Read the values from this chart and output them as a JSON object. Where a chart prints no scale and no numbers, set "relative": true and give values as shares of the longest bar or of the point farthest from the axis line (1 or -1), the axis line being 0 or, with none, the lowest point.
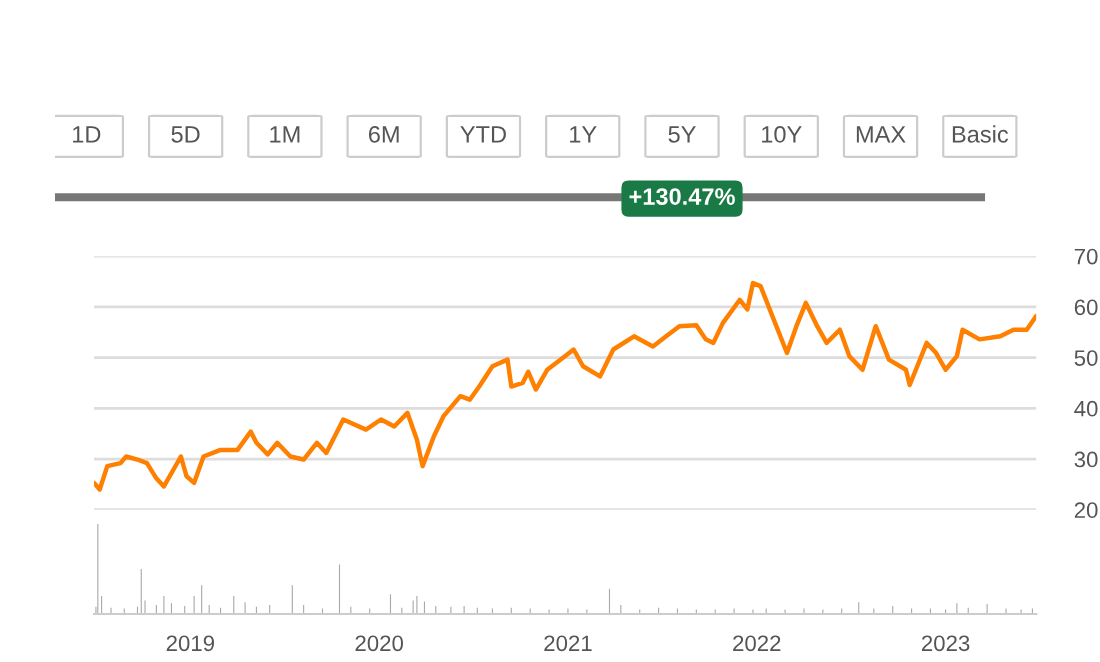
{
  "chart_data": [
    {
      "type": "other",
      "annotations": [
        "1D",
        "5D",
        "1M",
        "6M",
        "YTD",
        "1Y",
        "5Y",
        "10Y",
        "MAX",
        "Basic",
        "+130.47%"
      ]
    },
    {
      "type": "line",
      "x": [
        2018.49,
        2018.52,
        2018.56,
        2018.63,
        2018.66,
        2018.72,
        2018.77,
        2018.82,
        2018.86,
        2018.95,
        2018.98,
        2019.02,
        2019.07,
        2019.16,
        2019.25,
        2019.32,
        2019.35,
        2019.41,
        2019.46,
        2019.53,
        2019.6,
        2019.67,
        2019.72,
        2019.81,
        2019.93,
        2020.01,
        2020.08,
        2020.15,
        2020.2,
        2020.23,
        2020.29,
        2020.34,
        2020.43,
        2020.48,
        2020.53,
        2020.6,
        2020.68,
        2020.7,
        2020.76,
        2020.79,
        2020.83,
        2020.89,
        2020.96,
        2021.03,
        2021.08,
        2021.17,
        2021.24,
        2021.35,
        2021.45,
        2021.52,
        2021.59,
        2021.68,
        2021.73,
        2021.77,
        2021.82,
        2021.91,
        2021.95,
        2021.98,
        2022.02,
        2022.09,
        2022.16,
        2022.21,
        2022.26,
        2022.32,
        2022.37,
        2022.44,
        2022.49,
        2022.56,
        2022.63,
        2022.7,
        2022.79,
        2022.81,
        2022.9,
        2022.95,
        2023.0,
        2023.06,
        2023.09,
        2023.18,
        2023.29,
        2023.36,
        2023.43,
        2023.48
      ],
      "series": [
        {
          "color": "#ff7f00",
          "values": [
            25.3,
            24.0,
            28.6,
            29.2,
            30.5,
            29.9,
            29.2,
            26.2,
            24.6,
            30.5,
            26.6,
            25.3,
            30.5,
            31.8,
            31.8,
            35.4,
            33.2,
            30.9,
            33.2,
            30.5,
            29.9,
            33.2,
            31.2,
            37.8,
            35.8,
            37.8,
            36.4,
            39.1,
            33.8,
            28.6,
            34.5,
            38.4,
            42.4,
            41.7,
            44.3,
            48.3,
            49.6,
            44.3,
            45.0,
            47.2,
            43.7,
            47.6,
            49.6,
            51.6,
            48.3,
            46.3,
            51.6,
            54.2,
            52.2,
            54.2,
            56.2,
            56.4,
            53.6,
            52.9,
            56.8,
            61.4,
            59.5,
            64.7,
            64.1,
            57.5,
            50.9,
            56.2,
            60.8,
            56.2,
            52.9,
            55.5,
            50.3,
            47.6,
            56.2,
            49.6,
            47.6,
            44.6,
            52.9,
            50.9,
            47.6,
            50.3,
            55.5,
            53.6,
            54.2,
            55.5,
            55.5,
            58.2
          ]
        }
      ],
      "xlim": [
        2018.49,
        2023.48
      ],
      "ylim": [
        20,
        70
      ],
      "yticks": [
        20,
        30,
        40,
        50,
        60,
        70
      ],
      "grid": "y",
      "tick_labels": "y"
    },
    {
      "type": "bar",
      "relative": true,
      "x": [
        2018.5,
        2018.51,
        2018.53,
        2018.58,
        2018.65,
        2018.72,
        2018.74,
        2018.76,
        2018.82,
        2018.86,
        2018.9,
        2018.97,
        2019.02,
        2019.06,
        2019.1,
        2019.16,
        2019.23,
        2019.29,
        2019.35,
        2019.42,
        2019.54,
        2019.6,
        2019.7,
        2019.79,
        2019.85,
        2019.95,
        2020.06,
        2020.12,
        2020.18,
        2020.2,
        2020.24,
        2020.3,
        2020.38,
        2020.45,
        2020.52,
        2020.6,
        2020.7,
        2020.8,
        2020.9,
        2021.0,
        2021.1,
        2021.22,
        2021.28,
        2021.38,
        2021.48,
        2021.58,
        2021.68,
        2021.78,
        2021.88,
        2021.98,
        2022.05,
        2022.15,
        2022.25,
        2022.35,
        2022.45,
        2022.54,
        2022.62,
        2022.72,
        2022.82,
        2022.92,
        2023.0,
        2023.06,
        2023.12,
        2023.22,
        2023.32,
        2023.4,
        2023.46
      ],
      "series": [
        {
          "color": "#aaaaaa",
          "values": [
            0.08,
            1.0,
            0.2,
            0.07,
            0.06,
            0.08,
            0.5,
            0.15,
            0.1,
            0.2,
            0.12,
            0.09,
            0.2,
            0.32,
            0.1,
            0.07,
            0.2,
            0.13,
            0.08,
            0.1,
            0.32,
            0.1,
            0.06,
            0.55,
            0.08,
            0.06,
            0.22,
            0.07,
            0.15,
            0.2,
            0.14,
            0.09,
            0.08,
            0.09,
            0.07,
            0.06,
            0.07,
            0.06,
            0.05,
            0.06,
            0.05,
            0.28,
            0.1,
            0.05,
            0.07,
            0.06,
            0.05,
            0.05,
            0.06,
            0.05,
            0.06,
            0.05,
            0.06,
            0.05,
            0.06,
            0.13,
            0.06,
            0.09,
            0.06,
            0.06,
            0.05,
            0.12,
            0.07,
            0.11,
            0.06,
            0.05,
            0.06
          ]
        }
      ],
      "xlim": [
        2018.49,
        2023.48
      ],
      "xticks": [
        2019,
        2020,
        2021,
        2022,
        2023
      ],
      "tick_labels": "x"
    }
  ]
}
